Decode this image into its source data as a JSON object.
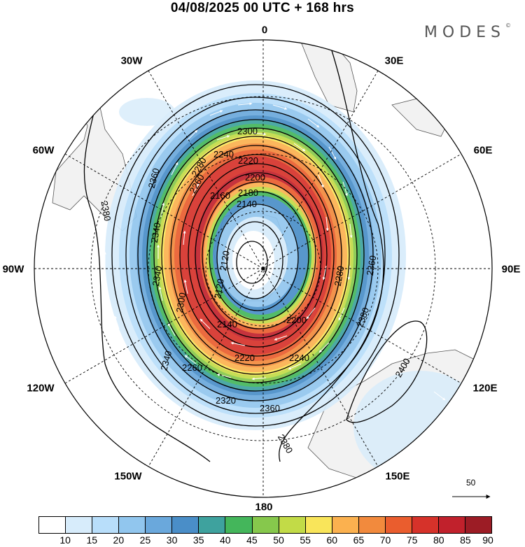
{
  "title": "04/08/2025  00 UTC  + 168 hrs",
  "brand": "MODES",
  "brand_mark": "©",
  "map": {
    "projection": "south-polar-stereographic",
    "longitude_labels": [
      "0",
      "30E",
      "60E",
      "90E",
      "120E",
      "150E",
      "180",
      "150W",
      "120W",
      "90W",
      "60W",
      "30W"
    ],
    "contour_labels": [
      "2300",
      "2280",
      "2260",
      "2240",
      "2220",
      "2200",
      "2180",
      "2160",
      "2140",
      "2120",
      "2120",
      "2140",
      "2200",
      "2220",
      "2240",
      "2260",
      "2280",
      "2300",
      "2320",
      "2340",
      "2340",
      "2360",
      "2360",
      "2380",
      "2380",
      "2380",
      "2400",
      "2360",
      "2340"
    ],
    "reference_vector_label": "50"
  },
  "colorbar": {
    "colors": [
      "#ffffff",
      "#d7ecfb",
      "#b8defa",
      "#91c6ee",
      "#6aa8dc",
      "#4a8ec8",
      "#3ea29e",
      "#44b65b",
      "#86c84c",
      "#c2db47",
      "#f9e55a",
      "#fbb14f",
      "#f28a3d",
      "#ea5d2e",
      "#d6322a",
      "#c1212c",
      "#9c1c25"
    ],
    "labels": [
      "10",
      "15",
      "20",
      "25",
      "30",
      "35",
      "40",
      "45",
      "50",
      "55",
      "60",
      "65",
      "70",
      "75",
      "80",
      "85",
      "90"
    ]
  }
}
